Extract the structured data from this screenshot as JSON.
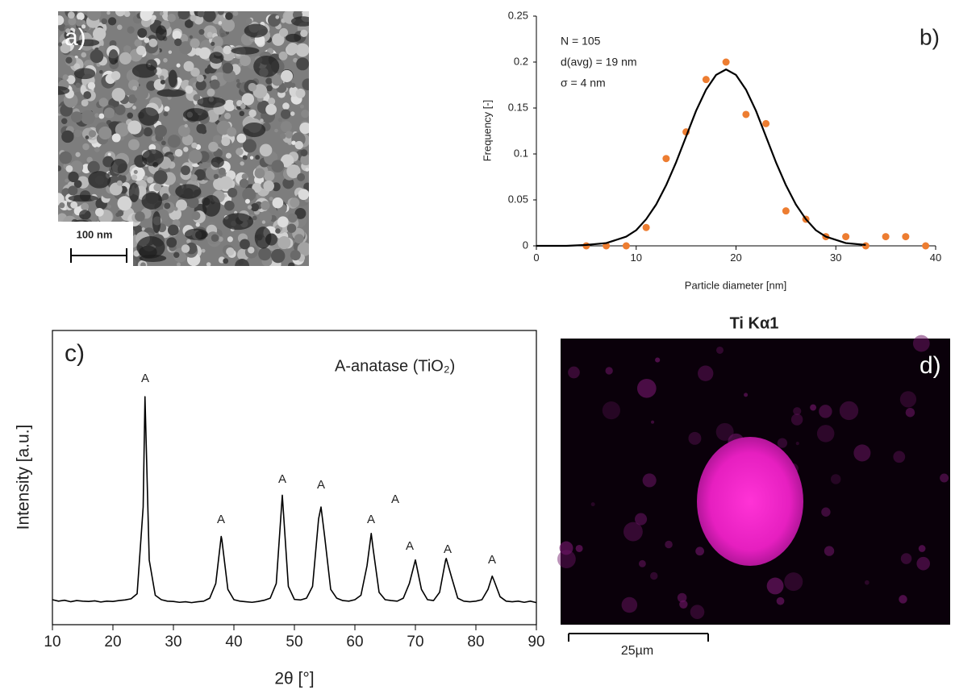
{
  "chart_data": [
    {
      "type": "scatter",
      "panel_label": "b)",
      "annotations": [
        "N = 105",
        "d(avg) = 19 nm",
        "σ = 4 nm"
      ],
      "x_label": "Particle diameter [nm]",
      "y_label": "Frequency [-]",
      "xlim": [
        0,
        40
      ],
      "xticks": [
        0,
        10,
        20,
        30,
        40
      ],
      "ylim": [
        0,
        0.25
      ],
      "yticks": [
        0,
        0.05,
        0.1,
        0.15,
        0.2,
        0.25
      ],
      "series": [
        {
          "color": "#ed7d31",
          "x": [
            5,
            7,
            9,
            11,
            13,
            15,
            17,
            19,
            21,
            23,
            25,
            27,
            29,
            31,
            33,
            35,
            37,
            39
          ],
          "values": [
            0,
            0,
            0,
            0.02,
            0.095,
            0.124,
            0.181,
            0.2,
            0.143,
            0.133,
            0.038,
            0.029,
            0.01,
            0.01,
            0,
            0.01,
            0.01,
            0
          ]
        },
        {
          "type": "line",
          "color": "#000000",
          "x": [
            0,
            3,
            5,
            7,
            9,
            10,
            11,
            12,
            13,
            14,
            15,
            16,
            17,
            18,
            19,
            20,
            21,
            22,
            23,
            24,
            25,
            26,
            27,
            28,
            29,
            31,
            33
          ],
          "values": [
            0,
            0,
            0.001,
            0.003,
            0.01,
            0.017,
            0.029,
            0.045,
            0.066,
            0.091,
            0.119,
            0.147,
            0.17,
            0.186,
            0.192,
            0.186,
            0.17,
            0.147,
            0.119,
            0.091,
            0.066,
            0.045,
            0.029,
            0.017,
            0.01,
            0.003,
            0.001
          ]
        }
      ]
    },
    {
      "type": "line",
      "panel_label": "c)",
      "annotation": "A-anatase  (TiO₂)",
      "peak_labels": [
        "A",
        "A",
        "A",
        "A",
        "A",
        "A",
        "A",
        "A",
        "A"
      ],
      "x_label": "2θ [°]",
      "y_label": "Intensity [a.u.]",
      "xlim": [
        10,
        90
      ],
      "xticks": [
        10,
        20,
        30,
        40,
        50,
        60,
        70,
        80,
        90
      ],
      "ylim": [
        0,
        100
      ],
      "color": "#000000",
      "x": [
        10,
        11,
        12,
        13,
        14,
        15,
        16,
        17,
        18,
        19,
        20,
        21,
        22,
        23,
        24,
        25,
        25.3,
        26,
        27,
        28,
        29,
        30,
        31,
        32,
        33,
        34,
        35,
        36,
        37,
        37.9,
        38,
        39,
        40,
        41,
        42,
        43,
        44,
        45,
        46,
        47,
        48,
        49,
        50,
        51,
        52,
        53,
        54,
        54.4,
        55,
        56,
        57,
        58,
        59,
        60,
        61,
        62,
        62.7,
        63,
        64,
        65,
        66,
        67,
        68,
        69,
        70,
        71,
        72,
        73,
        74,
        75,
        75.1,
        76,
        77,
        78,
        79,
        80,
        81,
        82,
        82.7,
        83,
        84,
        85,
        86,
        87,
        88,
        89,
        90
      ],
      "values": [
        8.5,
        8,
        8.3,
        7.8,
        8.2,
        8,
        7.9,
        8.1,
        7.7,
        8,
        7.9,
        8.2,
        8.4,
        8.8,
        10.5,
        40,
        77.5,
        22,
        10,
        8.5,
        8,
        7.9,
        7.6,
        7.8,
        7.5,
        7.8,
        8,
        9,
        14,
        30,
        29,
        12,
        8.5,
        8,
        7.8,
        7.6,
        7.9,
        8.3,
        9,
        14,
        44,
        13,
        8.6,
        8.4,
        9,
        13,
        36,
        40,
        30,
        12,
        9,
        8.2,
        8,
        8.5,
        10,
        20,
        31,
        26,
        11,
        8.5,
        8.2,
        8,
        9,
        14,
        22,
        12,
        8.5,
        8.2,
        11,
        22,
        22.5,
        16,
        9,
        8,
        7.8,
        8,
        8.5,
        12,
        16.5,
        15,
        9.5,
        8,
        7.8,
        8,
        7.6,
        8,
        7.5
      ]
    }
  ],
  "images": [
    {
      "label": "a)",
      "scale_bar": "100 nm"
    },
    {
      "title": "Ti Kα1",
      "label": "d)",
      "scale_bar": "25µm"
    }
  ]
}
